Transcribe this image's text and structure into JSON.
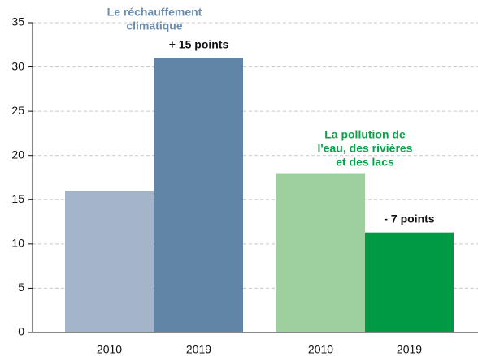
{
  "chart_data": {
    "type": "bar",
    "categories": [
      "2010",
      "2019",
      "2010",
      "2019"
    ],
    "values": [
      16,
      31,
      18,
      11.3
    ],
    "colors": [
      "#a4b4c9",
      "#6185a6",
      "#9dcf9f",
      "#009a44"
    ],
    "groups": [
      {
        "lines": [
          "Le réchauffement",
          "climatique"
        ],
        "color": "#6a8dae",
        "annotation": "+ 15 points"
      },
      {
        "lines": [
          "La pollution de",
          "l'eau, des rivières",
          "et des lacs"
        ],
        "color": "#0aa048",
        "annotation": "- 7 points"
      }
    ],
    "ylim": [
      0,
      35
    ],
    "yticks": [
      0,
      5,
      10,
      15,
      20,
      25,
      30,
      35
    ],
    "grid": true
  }
}
